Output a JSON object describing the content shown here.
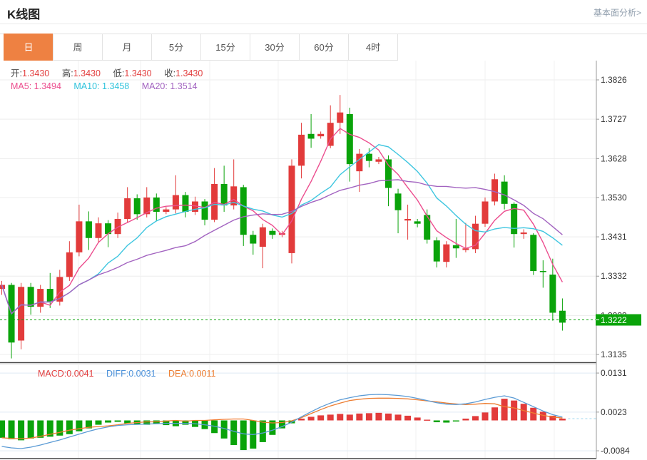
{
  "page": {
    "title": "K线图",
    "link": "基本面分析>",
    "accent": "#ee8142"
  },
  "tabs": [
    {
      "label": "日",
      "active": true
    },
    {
      "label": "周",
      "active": false
    },
    {
      "label": "月",
      "active": false
    },
    {
      "label": "5分",
      "active": false
    },
    {
      "label": "15分",
      "active": false
    },
    {
      "label": "30分",
      "active": false
    },
    {
      "label": "60分",
      "active": false
    },
    {
      "label": "4时",
      "active": false
    }
  ],
  "ohlc": {
    "open_label": "开:",
    "open": "1.3430",
    "high_label": "高:",
    "high": "1.3430",
    "low_label": "低:",
    "low": "1.3430",
    "close_label": "收:",
    "close": "1.3430"
  },
  "ma": {
    "ma5_label": "MA5:",
    "ma5": "1.3494",
    "ma10_label": "MA10:",
    "ma10": "1.3458",
    "ma20_label": "MA20:",
    "ma20": "1.3514"
  },
  "macd_legend": {
    "macd_label": "MACD:",
    "macd": "0.0041",
    "diff_label": "DIFF:",
    "diff": "0.0031",
    "dea_label": "DEA:",
    "dea": "0.0011"
  },
  "chart_data": {
    "type": "candlestick+macd",
    "panels": [
      "price-kline",
      "macd"
    ],
    "price_axis_ticks": [
      "1.3826",
      "1.3727",
      "1.3628",
      "1.3530",
      "1.3431",
      "1.3332",
      "1.3233",
      "1.3135"
    ],
    "macd_axis_ticks": [
      "0.0131",
      "0.0023",
      "-0.0084"
    ],
    "current_price": "1.3222",
    "legend_position": "top-left overlay",
    "grid": true,
    "candles_ohlc_note": "each row is [open, close, low, high]; red when close>=open, green when close<open",
    "candles": [
      [
        1.33,
        1.331,
        1.3285,
        1.332
      ],
      [
        1.331,
        1.3165,
        1.3125,
        1.3315
      ],
      [
        1.317,
        1.3305,
        1.3148,
        1.3315
      ],
      [
        1.3305,
        1.3255,
        1.3235,
        1.3315
      ],
      [
        1.3255,
        1.33,
        1.324,
        1.331
      ],
      [
        1.33,
        1.3268,
        1.3252,
        1.334
      ],
      [
        1.3268,
        1.333,
        1.3258,
        1.3348
      ],
      [
        1.333,
        1.3392,
        1.332,
        1.342
      ],
      [
        1.3392,
        1.347,
        1.3382,
        1.3512
      ],
      [
        1.347,
        1.3428,
        1.3398,
        1.3495
      ],
      [
        1.3428,
        1.3465,
        1.3415,
        1.348
      ],
      [
        1.3465,
        1.3438,
        1.3405,
        1.3473
      ],
      [
        1.3438,
        1.3476,
        1.3428,
        1.3492
      ],
      [
        1.3476,
        1.3528,
        1.3466,
        1.3556
      ],
      [
        1.3528,
        1.3488,
        1.3474,
        1.3538
      ],
      [
        1.3488,
        1.353,
        1.348,
        1.3556
      ],
      [
        1.353,
        1.3494,
        1.347,
        1.354
      ],
      [
        1.3494,
        1.35,
        1.3488,
        1.3506
      ],
      [
        1.35,
        1.3536,
        1.349,
        1.3586
      ],
      [
        1.3536,
        1.3494,
        1.348,
        1.3544
      ],
      [
        1.3494,
        1.352,
        1.3486,
        1.3532
      ],
      [
        1.352,
        1.3474,
        1.346,
        1.3526
      ],
      [
        1.3474,
        1.3564,
        1.3468,
        1.3604
      ],
      [
        1.3564,
        1.351,
        1.3494,
        1.361
      ],
      [
        1.351,
        1.3558,
        1.35,
        1.3626
      ],
      [
        1.3556,
        1.3436,
        1.3408,
        1.3562
      ],
      [
        1.3436,
        1.3414,
        1.3386,
        1.3446
      ],
      [
        1.3406,
        1.3455,
        1.3352,
        1.3464
      ],
      [
        1.3446,
        1.3436,
        1.3426,
        1.3452
      ],
      [
        1.3436,
        1.344,
        1.343,
        1.3446
      ],
      [
        1.339,
        1.361,
        1.3364,
        1.3626
      ],
      [
        1.361,
        1.3688,
        1.3578,
        1.3718
      ],
      [
        1.369,
        1.3678,
        1.3655,
        1.374
      ],
      [
        1.3684,
        1.369,
        1.3678,
        1.3696
      ],
      [
        1.366,
        1.3718,
        1.3654,
        1.3762
      ],
      [
        1.3718,
        1.3744,
        1.369,
        1.3788
      ],
      [
        1.374,
        1.3614,
        1.357,
        1.3756
      ],
      [
        1.3596,
        1.364,
        1.3544,
        1.3652
      ],
      [
        1.364,
        1.3622,
        1.3606,
        1.3654
      ],
      [
        1.362,
        1.3626,
        1.3614,
        1.3632
      ],
      [
        1.3626,
        1.3554,
        1.3508,
        1.3636
      ],
      [
        1.354,
        1.3498,
        1.344,
        1.3552
      ],
      [
        1.3472,
        1.3476,
        1.3424,
        1.3512
      ],
      [
        1.347,
        1.3464,
        1.3455,
        1.3476
      ],
      [
        1.3486,
        1.3424,
        1.3414,
        1.35
      ],
      [
        1.3422,
        1.3369,
        1.3354,
        1.343
      ],
      [
        1.3368,
        1.3412,
        1.3354,
        1.342
      ],
      [
        1.341,
        1.3402,
        1.3378,
        1.3476
      ],
      [
        1.3398,
        1.3402,
        1.3392,
        1.3466
      ],
      [
        1.34,
        1.3464,
        1.339,
        1.3484
      ],
      [
        1.3464,
        1.352,
        1.3456,
        1.353
      ],
      [
        1.352,
        1.3576,
        1.351,
        1.359
      ],
      [
        1.357,
        1.3514,
        1.35,
        1.3586
      ],
      [
        1.3514,
        1.3438,
        1.3404,
        1.3518
      ],
      [
        1.3438,
        1.3442,
        1.3426,
        1.345
      ],
      [
        1.3436,
        1.3345,
        1.3335,
        1.344
      ],
      [
        1.3345,
        1.3344,
        1.3303,
        1.3372
      ],
      [
        1.3336,
        1.324,
        1.322,
        1.3376
      ],
      [
        1.3245,
        1.3215,
        1.3195,
        1.3276
      ]
    ],
    "moving_averages": {
      "periods": [
        5,
        10,
        20
      ],
      "computed_from": "closes"
    },
    "macd": {
      "hist": [
        -0.0048,
        -0.0052,
        -0.0055,
        -0.005,
        -0.0048,
        -0.0045,
        -0.0042,
        -0.0038,
        -0.003,
        -0.0022,
        -0.0012,
        -0.0006,
        -0.0004,
        -0.0008,
        -0.001,
        -0.0012,
        -0.001,
        -0.0013,
        -0.0016,
        -0.0012,
        -0.0018,
        -0.0024,
        -0.0035,
        -0.005,
        -0.0068,
        -0.0082,
        -0.0078,
        -0.006,
        -0.004,
        -0.0022,
        -0.0008,
        0.0005,
        0.001,
        0.0014,
        0.0016,
        0.0018,
        0.0016,
        0.0019,
        0.002,
        0.0021,
        0.0019,
        0.0016,
        0.0013,
        0.0008,
        0.0002,
        -0.0005,
        -0.0006,
        -0.0003,
        0.0005,
        0.0012,
        0.0022,
        0.0036,
        0.006,
        0.0055,
        0.0046,
        0.0035,
        0.0024,
        0.0013,
        0.0005
      ],
      "diff": [
        -0.0072,
        -0.0076,
        -0.0078,
        -0.0074,
        -0.0068,
        -0.0061,
        -0.0054,
        -0.0046,
        -0.0038,
        -0.003,
        -0.0023,
        -0.0018,
        -0.0014,
        -0.0012,
        -0.0011,
        -0.001,
        -0.0009,
        -0.0008,
        -0.0008,
        -0.0008,
        -0.0009,
        -0.0012,
        -0.0016,
        -0.0022,
        -0.003,
        -0.0037,
        -0.0039,
        -0.0035,
        -0.0027,
        -0.0017,
        -0.0005,
        0.001,
        0.0024,
        0.0037,
        0.0048,
        0.0057,
        0.0063,
        0.0068,
        0.0071,
        0.0072,
        0.0071,
        0.0069,
        0.0066,
        0.0061,
        0.0055,
        0.0049,
        0.0045,
        0.0044,
        0.0046,
        0.0051,
        0.0058,
        0.0064,
        0.0068,
        0.0062,
        0.005,
        0.0038,
        0.0026,
        0.0016,
        0.0009
      ]
    },
    "style": {
      "up": "#e23b3b",
      "down": "#0aa30a",
      "ma5": "#ec4d8e",
      "ma10": "#3fc6e0",
      "ma20": "#a263c0",
      "diff_line": "#5b9bd5",
      "dea_line": "#ed7d31",
      "grid": "#ededed",
      "vgrid": "#f2f2f2",
      "macd_grid": "#dfeaf4",
      "axis": "#999999",
      "text": "#333333",
      "badge": "#0aa30a",
      "price_line": "#0aa30a",
      "dashed_ext": "#b5dff2",
      "divider": "#444444"
    }
  }
}
